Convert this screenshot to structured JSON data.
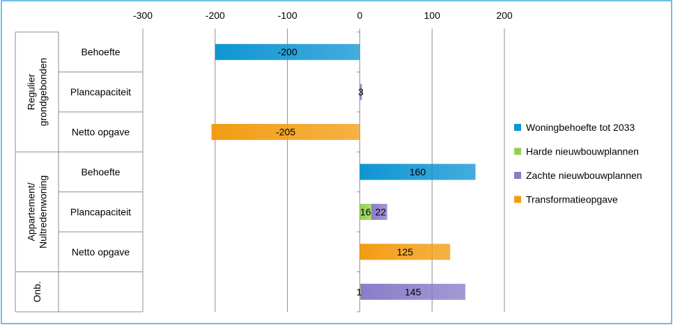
{
  "chart_data": {
    "type": "bar",
    "orientation": "horizontal",
    "stacked": true,
    "xlim": [
      -300,
      200
    ],
    "x_ticks": [
      -300,
      -200,
      -100,
      0,
      100,
      200
    ],
    "x_tick_labels": [
      "-300",
      "-200",
      "-100",
      "0",
      "100",
      "200"
    ],
    "grid": true,
    "legend_position": "right",
    "groups": [
      {
        "name": "Regulier grondgebonden",
        "lines": [
          "Regulier",
          "grondgebonden"
        ],
        "rows": [
          0,
          1,
          2
        ]
      },
      {
        "name": "Appartement/ Nultredenwoning",
        "lines": [
          "Appartement/",
          "Nultredenwoning"
        ],
        "rows": [
          3,
          4,
          5
        ]
      },
      {
        "name": "Onb.",
        "lines": [
          "Onb."
        ],
        "rows": [
          6
        ]
      }
    ],
    "categories": [
      "Behoefte",
      "Plancapaciteit",
      "Netto opgave",
      "Behoefte",
      "Plancapaciteit",
      "Netto opgave",
      ""
    ],
    "series": [
      {
        "name": "Woningbehoefte tot 2033",
        "color": "#0f95d3",
        "values": [
          -200,
          null,
          null,
          160,
          null,
          null,
          null
        ],
        "labels": [
          "-200",
          "",
          "",
          "160",
          "",
          "",
          ""
        ]
      },
      {
        "name": "Harde nieuwbouwplannen",
        "color": "#92d050",
        "values": [
          null,
          null,
          null,
          null,
          16,
          null,
          1
        ],
        "labels": [
          "",
          "",
          "",
          "",
          "16",
          "",
          "1"
        ]
      },
      {
        "name": "Zachte nieuwbouwplannen",
        "color": "#8a7cc8",
        "values": [
          null,
          3,
          null,
          null,
          22,
          null,
          145
        ],
        "labels": [
          "",
          "3",
          "",
          "",
          "22",
          "",
          "145"
        ]
      },
      {
        "name": "Transformatieopgave",
        "color": "#f39c12",
        "values": [
          null,
          null,
          -205,
          null,
          null,
          125,
          null
        ],
        "labels": [
          "",
          "",
          "-205",
          "",
          "",
          "125",
          ""
        ]
      }
    ]
  }
}
